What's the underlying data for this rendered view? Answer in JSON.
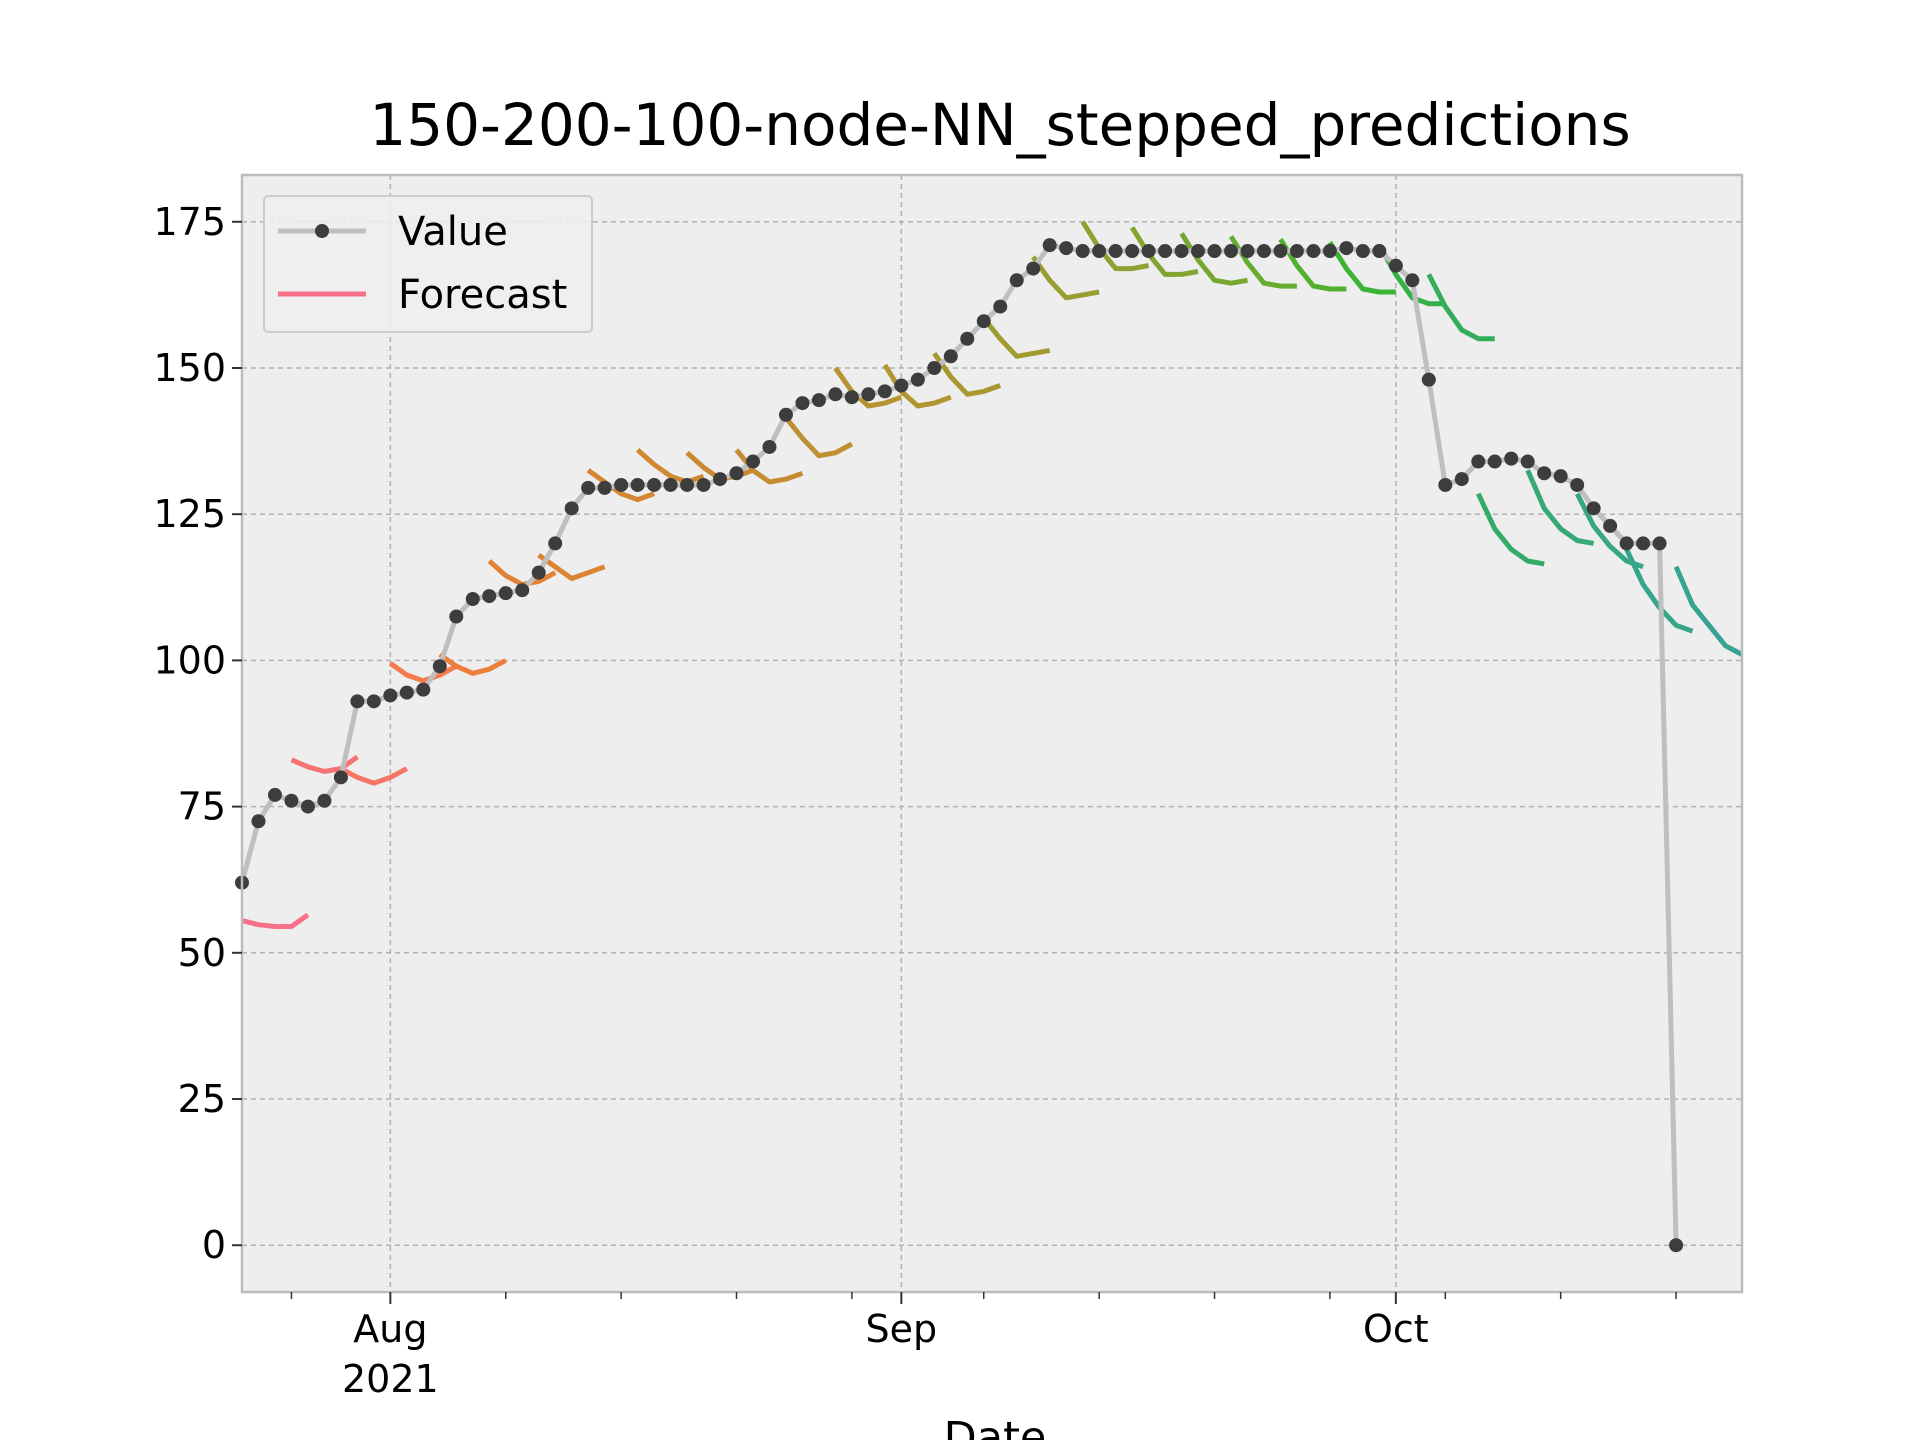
{
  "chart_data": {
    "type": "line",
    "title": "150-200-100-node-NN_stepped_predictions",
    "xlabel": "Date",
    "ylabel": "",
    "x_range": [
      "2021-07-23",
      "2021-10-22"
    ],
    "ylim": [
      -8,
      183
    ],
    "y_ticks": [
      0,
      25,
      50,
      75,
      100,
      125,
      150,
      175
    ],
    "x_ticks": [
      {
        "date": "2021-08-01",
        "label": "Aug",
        "sublabel": "2021"
      },
      {
        "date": "2021-09-01",
        "label": "Sep",
        "sublabel": ""
      },
      {
        "date": "2021-10-01",
        "label": "Oct",
        "sublabel": ""
      }
    ],
    "x_minor_ticks": [
      "2021-07-26",
      "2021-08-08",
      "2021-08-15",
      "2021-08-22",
      "2021-08-29",
      "2021-09-06",
      "2021-09-13",
      "2021-09-20",
      "2021-09-27",
      "2021-10-04",
      "2021-10-11",
      "2021-10-18"
    ],
    "grid": true,
    "legend": {
      "placement": "top-left",
      "entries": [
        {
          "label": "Value",
          "style": "line-marker",
          "color": "#bfbfbf",
          "marker_color": "#3d3d3d"
        },
        {
          "label": "Forecast",
          "style": "line",
          "color": "#f77189"
        }
      ]
    },
    "series": [
      {
        "name": "Value",
        "color": "#bfbfbf",
        "marker_color": "#3d3d3d",
        "x": [
          "2021-07-23",
          "2021-07-24",
          "2021-07-25",
          "2021-07-26",
          "2021-07-27",
          "2021-07-28",
          "2021-07-29",
          "2021-07-30",
          "2021-07-31",
          "2021-08-01",
          "2021-08-02",
          "2021-08-03",
          "2021-08-04",
          "2021-08-05",
          "2021-08-06",
          "2021-08-07",
          "2021-08-08",
          "2021-08-09",
          "2021-08-10",
          "2021-08-11",
          "2021-08-12",
          "2021-08-13",
          "2021-08-14",
          "2021-08-15",
          "2021-08-16",
          "2021-08-17",
          "2021-08-18",
          "2021-08-19",
          "2021-08-20",
          "2021-08-21",
          "2021-08-22",
          "2021-08-23",
          "2021-08-24",
          "2021-08-25",
          "2021-08-26",
          "2021-08-27",
          "2021-08-28",
          "2021-08-29",
          "2021-08-30",
          "2021-08-31",
          "2021-09-01",
          "2021-09-02",
          "2021-09-03",
          "2021-09-04",
          "2021-09-05",
          "2021-09-06",
          "2021-09-07",
          "2021-09-08",
          "2021-09-09",
          "2021-09-10",
          "2021-09-11",
          "2021-09-12",
          "2021-09-13",
          "2021-09-14",
          "2021-09-15",
          "2021-09-16",
          "2021-09-17",
          "2021-09-18",
          "2021-09-19",
          "2021-09-20",
          "2021-09-21",
          "2021-09-22",
          "2021-09-23",
          "2021-09-24",
          "2021-09-25",
          "2021-09-26",
          "2021-09-27",
          "2021-09-28",
          "2021-09-29",
          "2021-09-30",
          "2021-10-01",
          "2021-10-02",
          "2021-10-03",
          "2021-10-04",
          "2021-10-05",
          "2021-10-06",
          "2021-10-07",
          "2021-10-08",
          "2021-10-09",
          "2021-10-10",
          "2021-10-11",
          "2021-10-12",
          "2021-10-13",
          "2021-10-14",
          "2021-10-15",
          "2021-10-16",
          "2021-10-17",
          "2021-10-18"
        ],
        "values": [
          62,
          72.5,
          77,
          76,
          75,
          76,
          80,
          93,
          93,
          94,
          94.5,
          95,
          99,
          107.5,
          110.5,
          111,
          111.5,
          112,
          115,
          120,
          126,
          129.5,
          129.5,
          130,
          130,
          130,
          130,
          130,
          130,
          131,
          132,
          134,
          136.5,
          142,
          144,
          144.5,
          145.5,
          145,
          145.5,
          146,
          147,
          148,
          150,
          152,
          155,
          158,
          160.5,
          165,
          167,
          171,
          170.5,
          170,
          170,
          170,
          170,
          170,
          170,
          170,
          170,
          170,
          170,
          170,
          170,
          170,
          170,
          170,
          170,
          170.5,
          170,
          170,
          167.5,
          165,
          148,
          130,
          131,
          134,
          134,
          134.5,
          134,
          132,
          131.5,
          130,
          126,
          123,
          120,
          120,
          120,
          0
        ]
      },
      {
        "name": "",
        "color": "#f77189",
        "x": [
          "2021-07-23",
          "2021-07-24",
          "2021-07-25",
          "2021-07-26",
          "2021-07-27"
        ],
        "values": [
          55.5,
          54.8,
          54.5,
          54.5,
          56.5
        ]
      },
      {
        "name": "",
        "color": "#f67375",
        "x": [
          "2021-07-26",
          "2021-07-27",
          "2021-07-28",
          "2021-07-29",
          "2021-07-30"
        ],
        "values": [
          83,
          81.8,
          81,
          81.5,
          83.5
        ]
      },
      {
        "name": "",
        "color": "#f67566",
        "x": [
          "2021-07-29",
          "2021-07-30",
          "2021-07-31",
          "2021-08-01",
          "2021-08-02"
        ],
        "values": [
          81.5,
          80,
          79,
          80,
          81.5
        ]
      },
      {
        "name": "",
        "color": "#f67a4e",
        "x": [
          "2021-08-01",
          "2021-08-02",
          "2021-08-03",
          "2021-08-04",
          "2021-08-05"
        ],
        "values": [
          99.5,
          97.5,
          96.5,
          97.5,
          99
        ]
      },
      {
        "name": "",
        "color": "#ec7e3a",
        "x": [
          "2021-08-04",
          "2021-08-05",
          "2021-08-06",
          "2021-08-07",
          "2021-08-08"
        ],
        "values": [
          101,
          99,
          97.8,
          98.5,
          100
        ]
      },
      {
        "name": "",
        "color": "#e38134",
        "x": [
          "2021-08-07",
          "2021-08-08",
          "2021-08-09",
          "2021-08-10",
          "2021-08-11"
        ],
        "values": [
          117,
          114.5,
          113,
          113.5,
          115
        ]
      },
      {
        "name": "",
        "color": "#dc8432",
        "x": [
          "2021-08-10",
          "2021-08-11",
          "2021-08-12",
          "2021-08-13",
          "2021-08-14"
        ],
        "values": [
          118,
          116,
          114,
          115,
          116
        ]
      },
      {
        "name": "",
        "color": "#d68631",
        "x": [
          "2021-08-13",
          "2021-08-14",
          "2021-08-15",
          "2021-08-16",
          "2021-08-17"
        ],
        "values": [
          132.5,
          130.5,
          128.5,
          127.5,
          128.5
        ]
      },
      {
        "name": "",
        "color": "#d08831",
        "x": [
          "2021-08-16",
          "2021-08-17",
          "2021-08-18",
          "2021-08-19",
          "2021-08-20"
        ],
        "values": [
          136,
          133.5,
          131.5,
          130.5,
          131.5
        ]
      },
      {
        "name": "",
        "color": "#cb8a31",
        "x": [
          "2021-08-19",
          "2021-08-20",
          "2021-08-21",
          "2021-08-22",
          "2021-08-23"
        ],
        "values": [
          135.5,
          133,
          131,
          131.5,
          132.5
        ]
      },
      {
        "name": "",
        "color": "#c58c31",
        "x": [
          "2021-08-22",
          "2021-08-23",
          "2021-08-24",
          "2021-08-25",
          "2021-08-26"
        ],
        "values": [
          136,
          132.5,
          130.5,
          131,
          132
        ]
      },
      {
        "name": "",
        "color": "#be9031",
        "x": [
          "2021-08-25",
          "2021-08-26",
          "2021-08-27",
          "2021-08-28",
          "2021-08-29"
        ],
        "values": [
          141.5,
          138,
          135,
          135.5,
          137
        ]
      },
      {
        "name": "",
        "color": "#b79231",
        "x": [
          "2021-08-28",
          "2021-08-29",
          "2021-08-30",
          "2021-08-31",
          "2021-09-01"
        ],
        "values": [
          150,
          146,
          143.5,
          144,
          145
        ]
      },
      {
        "name": "",
        "color": "#b09531",
        "x": [
          "2021-08-31",
          "2021-09-01",
          "2021-09-02",
          "2021-09-03",
          "2021-09-04"
        ],
        "values": [
          150.5,
          146,
          143.5,
          144,
          145
        ]
      },
      {
        "name": "",
        "color": "#a89831",
        "x": [
          "2021-09-03",
          "2021-09-04",
          "2021-09-05",
          "2021-09-06",
          "2021-09-07"
        ],
        "values": [
          152.5,
          148.5,
          145.5,
          146,
          147
        ]
      },
      {
        "name": "",
        "color": "#a09b31",
        "x": [
          "2021-09-06",
          "2021-09-07",
          "2021-09-08",
          "2021-09-09",
          "2021-09-10"
        ],
        "values": [
          158.5,
          155,
          152,
          152.5,
          153
        ]
      },
      {
        "name": "",
        "color": "#989e31",
        "x": [
          "2021-09-09",
          "2021-09-10",
          "2021-09-11",
          "2021-09-12",
          "2021-09-13"
        ],
        "values": [
          169,
          165,
          162,
          162.5,
          163
        ]
      },
      {
        "name": "",
        "color": "#8ea131",
        "x": [
          "2021-09-12",
          "2021-09-13",
          "2021-09-14",
          "2021-09-15",
          "2021-09-16"
        ],
        "values": [
          175,
          170.5,
          167,
          167,
          167.5
        ]
      },
      {
        "name": "",
        "color": "#83a431",
        "x": [
          "2021-09-15",
          "2021-09-16",
          "2021-09-17",
          "2021-09-18",
          "2021-09-19"
        ],
        "values": [
          174,
          169.5,
          166,
          166,
          166.5
        ]
      },
      {
        "name": "",
        "color": "#76a831",
        "x": [
          "2021-09-18",
          "2021-09-19",
          "2021-09-20",
          "2021-09-21",
          "2021-09-22"
        ],
        "values": [
          173,
          168.5,
          165,
          164.5,
          165
        ]
      },
      {
        "name": "",
        "color": "#66ac31",
        "x": [
          "2021-09-21",
          "2021-09-22",
          "2021-09-23",
          "2021-09-24",
          "2021-09-25"
        ],
        "values": [
          172.5,
          168,
          164.5,
          164,
          164
        ]
      },
      {
        "name": "",
        "color": "#52b031",
        "x": [
          "2021-09-24",
          "2021-09-25",
          "2021-09-26",
          "2021-09-27",
          "2021-09-28"
        ],
        "values": [
          172,
          167.5,
          164,
          163.5,
          163.5
        ]
      },
      {
        "name": "",
        "color": "#3bb435",
        "x": [
          "2021-09-27",
          "2021-09-28",
          "2021-09-29",
          "2021-09-30",
          "2021-10-01"
        ],
        "values": [
          171.5,
          167,
          163.5,
          163,
          163
        ]
      },
      {
        "name": "",
        "color": "#33b046",
        "x": [
          "2021-09-30",
          "2021-10-01",
          "2021-10-02",
          "2021-10-03",
          "2021-10-04"
        ],
        "values": [
          171,
          166,
          162,
          161,
          161
        ]
      },
      {
        "name": "",
        "color": "#34ad5b",
        "x": [
          "2021-10-03",
          "2021-10-04",
          "2021-10-05",
          "2021-10-06",
          "2021-10-07"
        ],
        "values": [
          166,
          160.5,
          156.5,
          155,
          155
        ]
      },
      {
        "name": "",
        "color": "#35ab6a",
        "x": [
          "2021-10-06",
          "2021-10-07",
          "2021-10-08",
          "2021-10-09",
          "2021-10-10"
        ],
        "values": [
          128.5,
          122.5,
          119,
          117,
          116.5
        ]
      },
      {
        "name": "",
        "color": "#35a977",
        "x": [
          "2021-10-09",
          "2021-10-10",
          "2021-10-11",
          "2021-10-12",
          "2021-10-13"
        ],
        "values": [
          132.5,
          126,
          122.5,
          120.5,
          120
        ]
      },
      {
        "name": "",
        "color": "#36a781",
        "x": [
          "2021-10-12",
          "2021-10-13",
          "2021-10-14",
          "2021-10-15",
          "2021-10-16"
        ],
        "values": [
          128.5,
          123,
          119.5,
          117,
          116
        ]
      },
      {
        "name": "",
        "color": "#36a58a",
        "x": [
          "2021-10-15",
          "2021-10-16",
          "2021-10-17",
          "2021-10-18",
          "2021-10-19"
        ],
        "values": [
          119,
          113,
          109,
          106,
          105
        ]
      },
      {
        "name": "",
        "color": "#37a393",
        "x": [
          "2021-10-18",
          "2021-10-19",
          "2021-10-20",
          "2021-10-21",
          "2021-10-22"
        ],
        "values": [
          116,
          109.5,
          106,
          102.5,
          101
        ]
      }
    ]
  }
}
